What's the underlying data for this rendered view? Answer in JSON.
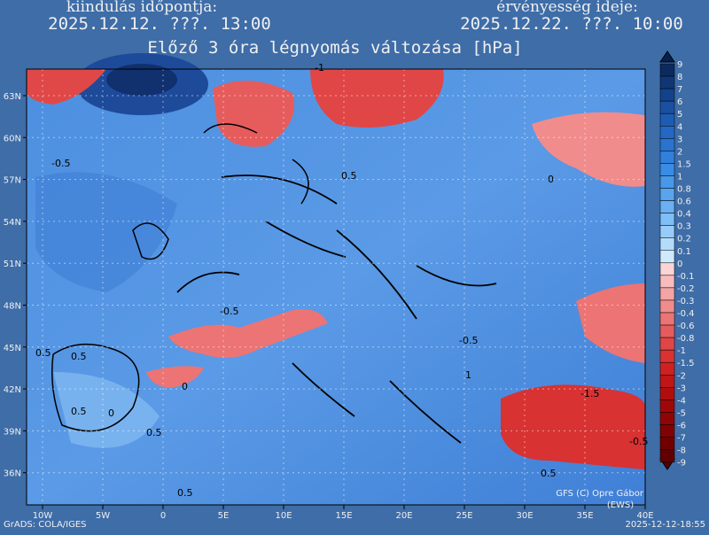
{
  "header": {
    "left_label": "kiindulás időpontja:",
    "left_time": "2025.12.12. ???. 13:00",
    "right_label": "érvényesség ideje:",
    "right_time": "2025.12.22. ???. 10:00",
    "title": "Előző 3 óra légnyomás változása [hPa]"
  },
  "map": {
    "lat_labels": [
      "63N",
      "60N",
      "57N",
      "54N",
      "51N",
      "48N",
      "45N",
      "42N",
      "39N",
      "36N"
    ],
    "lon_labels": [
      "10W",
      "5W",
      "0",
      "5E",
      "10E",
      "15E",
      "20E",
      "25E",
      "30E",
      "35E",
      "40E"
    ],
    "contour_labels": [
      "-0.5",
      "-1",
      "0.5",
      "0",
      "0.5",
      "-0.5",
      "0.5",
      "0.5",
      "0",
      "0.5",
      "-0.5",
      "1",
      "-1.5",
      "-0.5",
      "0.5",
      "0.5",
      "0"
    ]
  },
  "colorbar": {
    "labels": [
      "9",
      "8",
      "7",
      "6",
      "5",
      "4",
      "3",
      "2",
      "1.5",
      "1",
      "0.8",
      "0.6",
      "0.4",
      "0.3",
      "0.2",
      "0.1",
      "0",
      "-0.1",
      "-0.2",
      "-0.3",
      "-0.4",
      "-0.6",
      "-0.8",
      "-1",
      "-1.5",
      "-2",
      "-3",
      "-4",
      "-5",
      "-6",
      "-7",
      "-8",
      "-9"
    ],
    "colors": [
      "#0c2a5e",
      "#103674",
      "#14428a",
      "#1a50a0",
      "#1e5cb4",
      "#2468c4",
      "#2a74d0",
      "#3080dc",
      "#3a8ce4",
      "#4898ea",
      "#58a4ee",
      "#6ab0f2",
      "#80bef6",
      "#98ccf8",
      "#b4dcfa",
      "#d0eafc",
      "#fcd4d4",
      "#f8bcbc",
      "#f4a4a4",
      "#f08c8c",
      "#ec7474",
      "#e65c5c",
      "#e04646",
      "#d83232",
      "#ce2222",
      "#c01616",
      "#b00e0e",
      "#a00808",
      "#900404",
      "#800202",
      "#700000",
      "#600000"
    ]
  },
  "footer": {
    "left": "GrADS: COLA/IGES",
    "right": "2025-12-12-18:55",
    "credit": "GFS (C) Opre Gábor",
    "credit_sub": "(EWS)"
  }
}
